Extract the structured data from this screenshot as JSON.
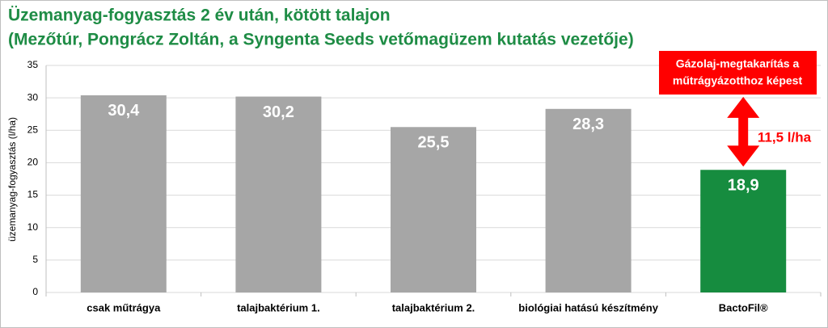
{
  "chart_data": {
    "type": "bar",
    "title": "Üzemanyag-fogyasztás 2 év után, kötött talajon",
    "subtitle": "(Mezőtúr, Pongrácz Zoltán, a Syngenta Seeds vetőmagüzem kutatás vezetője)",
    "y_label": "üzemanyag-fogyasztás (l/ha)",
    "categories": [
      "csak műtrágya",
      "talajbaktérium 1.",
      "talajbaktérium 2.",
      "biológiai hatású készítmény",
      "BactoFil®"
    ],
    "values": [
      30.4,
      30.2,
      25.5,
      28.3,
      18.9
    ],
    "value_labels": [
      "30,4",
      "30,2",
      "25,5",
      "28,3",
      "18,9"
    ],
    "colors": [
      "#a6a6a6",
      "#a6a6a6",
      "#a6a6a6",
      "#a6a6a6",
      "#168c3f"
    ],
    "ylim": [
      0,
      35
    ],
    "yticks": [
      0,
      5,
      10,
      15,
      20,
      25,
      30,
      35
    ],
    "grid": true,
    "annotation": [
      "Gázolaj-megtakarítás  a",
      "műtrágyázotthoz képest"
    ],
    "difference_label": "11,5 l/ha"
  }
}
